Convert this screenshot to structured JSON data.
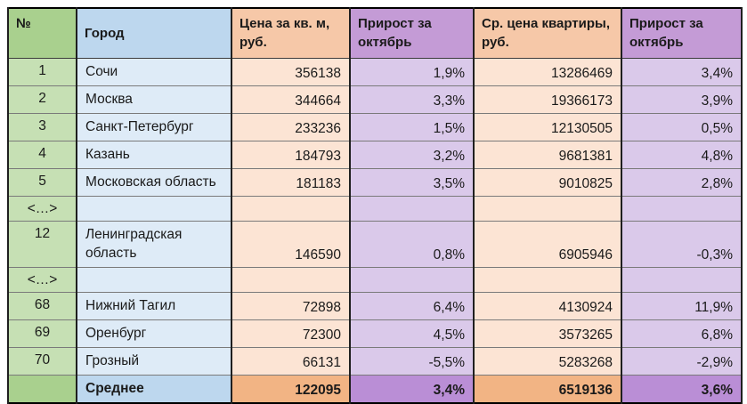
{
  "colors": {
    "green_header": "#A9D08E",
    "green_data": "#C6E0B4",
    "blue_header": "#BDD7EE",
    "blue_data": "#DEEBF7",
    "orange_header": "#F6C8A8",
    "orange_data": "#FCE4D4",
    "orange_total": "#F2B484",
    "purple_header": "#C49BD6",
    "purple_data": "#DAC9EA",
    "purple_total": "#BA8ED6",
    "border_outer": "#000000",
    "text": "#1A1A1A"
  },
  "table": {
    "columns": [
      {
        "id": "num",
        "label": "№"
      },
      {
        "id": "city",
        "label": "Город"
      },
      {
        "id": "price_sqm",
        "label": "Цена за кв. м, руб."
      },
      {
        "id": "growth_oct_sqm",
        "label": "Прирост за октябрь"
      },
      {
        "id": "price_flat",
        "label": "Ср. цена квартиры, руб."
      },
      {
        "id": "growth_oct_flat",
        "label": "Прирост за октябрь"
      }
    ],
    "rows": [
      {
        "type": "data",
        "num": "1",
        "city": "Сочи",
        "price_sqm": "356138",
        "growth_oct_sqm": "1,9%",
        "price_flat": "13286469",
        "growth_oct_flat": "3,4%"
      },
      {
        "type": "data",
        "num": "2",
        "city": "Москва",
        "price_sqm": "344664",
        "growth_oct_sqm": "3,3%",
        "price_flat": "19366173",
        "growth_oct_flat": "3,9%"
      },
      {
        "type": "data",
        "num": "3",
        "city": "Санкт-Петербург",
        "price_sqm": "233236",
        "growth_oct_sqm": "1,5%",
        "price_flat": "12130505",
        "growth_oct_flat": "0,5%"
      },
      {
        "type": "data",
        "num": "4",
        "city": "Казань",
        "price_sqm": "184793",
        "growth_oct_sqm": "3,2%",
        "price_flat": "9681381",
        "growth_oct_flat": "4,8%"
      },
      {
        "type": "data",
        "num": "5",
        "city": "Московская область",
        "price_sqm": "181183",
        "growth_oct_sqm": "3,5%",
        "price_flat": "9010825",
        "growth_oct_flat": "2,8%"
      },
      {
        "type": "ellipsis",
        "num": "<…>",
        "city": "",
        "price_sqm": "",
        "growth_oct_sqm": "",
        "price_flat": "",
        "growth_oct_flat": ""
      },
      {
        "type": "data",
        "num": "12",
        "city": "Ленинградская область",
        "price_sqm": "146590",
        "growth_oct_sqm": "0,8%",
        "price_flat": "6905946",
        "growth_oct_flat": "-0,3%"
      },
      {
        "type": "ellipsis",
        "num": "<…>",
        "city": "",
        "price_sqm": "",
        "growth_oct_sqm": "",
        "price_flat": "",
        "growth_oct_flat": ""
      },
      {
        "type": "data",
        "num": "68",
        "city": "Нижний Тагил",
        "price_sqm": "72898",
        "growth_oct_sqm": "6,4%",
        "price_flat": "4130924",
        "growth_oct_flat": "11,9%"
      },
      {
        "type": "data",
        "num": "69",
        "city": "Оренбург",
        "price_sqm": "72300",
        "growth_oct_sqm": "4,5%",
        "price_flat": "3573265",
        "growth_oct_flat": "6,8%"
      },
      {
        "type": "data",
        "num": "70",
        "city": "Грозный",
        "price_sqm": "66131",
        "growth_oct_sqm": "-5,5%",
        "price_flat": "5283268",
        "growth_oct_flat": "-2,9%"
      },
      {
        "type": "total",
        "num": "",
        "city": "Среднее",
        "price_sqm": "122095",
        "growth_oct_sqm": "3,4%",
        "price_flat": "6519136",
        "growth_oct_flat": "3,6%"
      }
    ]
  },
  "chart_data": {
    "type": "table",
    "title": "",
    "columns": [
      "№",
      "Город",
      "Цена за кв. м, руб.",
      "Прирост за октябрь",
      "Ср. цена квартиры, руб.",
      "Прирост за октябрь"
    ],
    "rows": [
      [
        1,
        "Сочи",
        356138,
        "1,9%",
        13286469,
        "3,4%"
      ],
      [
        2,
        "Москва",
        344664,
        "3,3%",
        19366173,
        "3,9%"
      ],
      [
        3,
        "Санкт-Петербург",
        233236,
        "1,5%",
        12130505,
        "0,5%"
      ],
      [
        4,
        "Казань",
        184793,
        "3,2%",
        9681381,
        "4,8%"
      ],
      [
        5,
        "Московская область",
        181183,
        "3,5%",
        9010825,
        "2,8%"
      ],
      [
        "<…>",
        "",
        null,
        "",
        null,
        ""
      ],
      [
        12,
        "Ленинградская область",
        146590,
        "0,8%",
        6905946,
        "-0,3%"
      ],
      [
        "<…>",
        "",
        null,
        "",
        null,
        ""
      ],
      [
        68,
        "Нижний Тагил",
        72898,
        "6,4%",
        4130924,
        "11,9%"
      ],
      [
        69,
        "Оренбург",
        72300,
        "4,5%",
        3573265,
        "6,8%"
      ],
      [
        70,
        "Грозный",
        66131,
        "-5,5%",
        5283268,
        "-2,9%"
      ],
      [
        "",
        "Среднее",
        122095,
        "3,4%",
        6519136,
        "3,6%"
      ]
    ]
  }
}
